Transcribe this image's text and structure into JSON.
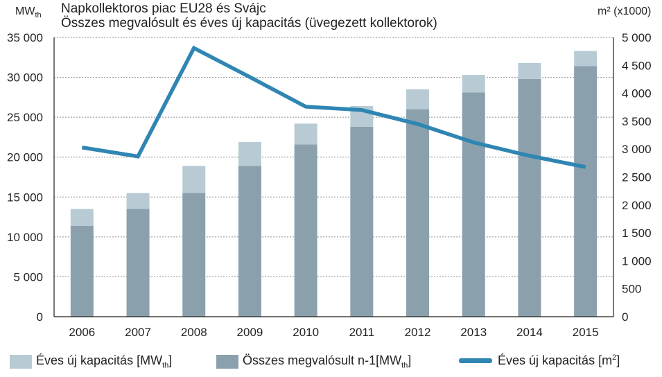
{
  "chart_data": {
    "type": "bar+line",
    "title": "Napkollektoros piac EU28 és Svájc",
    "subtitle": "Összes megvalósult és éves új kapacitás (üvegezett kollektorok)",
    "y_left_label": "MW",
    "y_left_label_sub": "th",
    "y_right_label": "m²",
    "y_right_label_suffix": "(x1000)",
    "categories": [
      "2006",
      "2007",
      "2008",
      "2009",
      "2010",
      "2011",
      "2012",
      "2013",
      "2014",
      "2015"
    ],
    "ylim_left": [
      0,
      35000
    ],
    "yticks_left": [
      "0",
      "5 000",
      "10 000",
      "15 000",
      "20 000",
      "25 000",
      "30 000",
      "35 000"
    ],
    "ylim_right": [
      0,
      5000
    ],
    "yticks_right": [
      "0",
      "500",
      "1 000",
      "1 500",
      "2 000",
      "2 500",
      "3 000",
      "3 500",
      "4 000",
      "4 500",
      "5 000"
    ],
    "series": [
      {
        "name": "Összes megvalósult n-1",
        "axis": "left",
        "kind": "stacked-bar-base",
        "color": "#8ba0ad",
        "values": [
          11400,
          13500,
          15500,
          18900,
          21600,
          23800,
          26000,
          28100,
          29800,
          31400
        ]
      },
      {
        "name": "Éves új kapacitás",
        "axis": "left",
        "kind": "stacked-bar-top",
        "color": "#b8cbd4",
        "values": [
          2100,
          2000,
          3400,
          3000,
          2600,
          2600,
          2500,
          2200,
          2000,
          1900
        ]
      },
      {
        "name": "Éves új kapacitás [m²]",
        "axis": "right",
        "kind": "line",
        "color": "#2f86b3",
        "values": [
          3030,
          2870,
          4810,
          4290,
          3760,
          3700,
          3450,
          3120,
          2880,
          2680
        ]
      }
    ],
    "legend": [
      {
        "text": "Éves új kapacitás [MW",
        "sub": "th",
        "close": "]",
        "color": "#b8cbd4"
      },
      {
        "text": "Összes megvalósult n-1[MW",
        "sub": "th",
        "close": "]",
        "color": "#8ba0ad"
      },
      {
        "text": "Éves új kapacitás [m",
        "sup": "2",
        "close": "]",
        "color": "#2f86b3"
      }
    ],
    "grid": true,
    "legend_position": "bottom"
  }
}
